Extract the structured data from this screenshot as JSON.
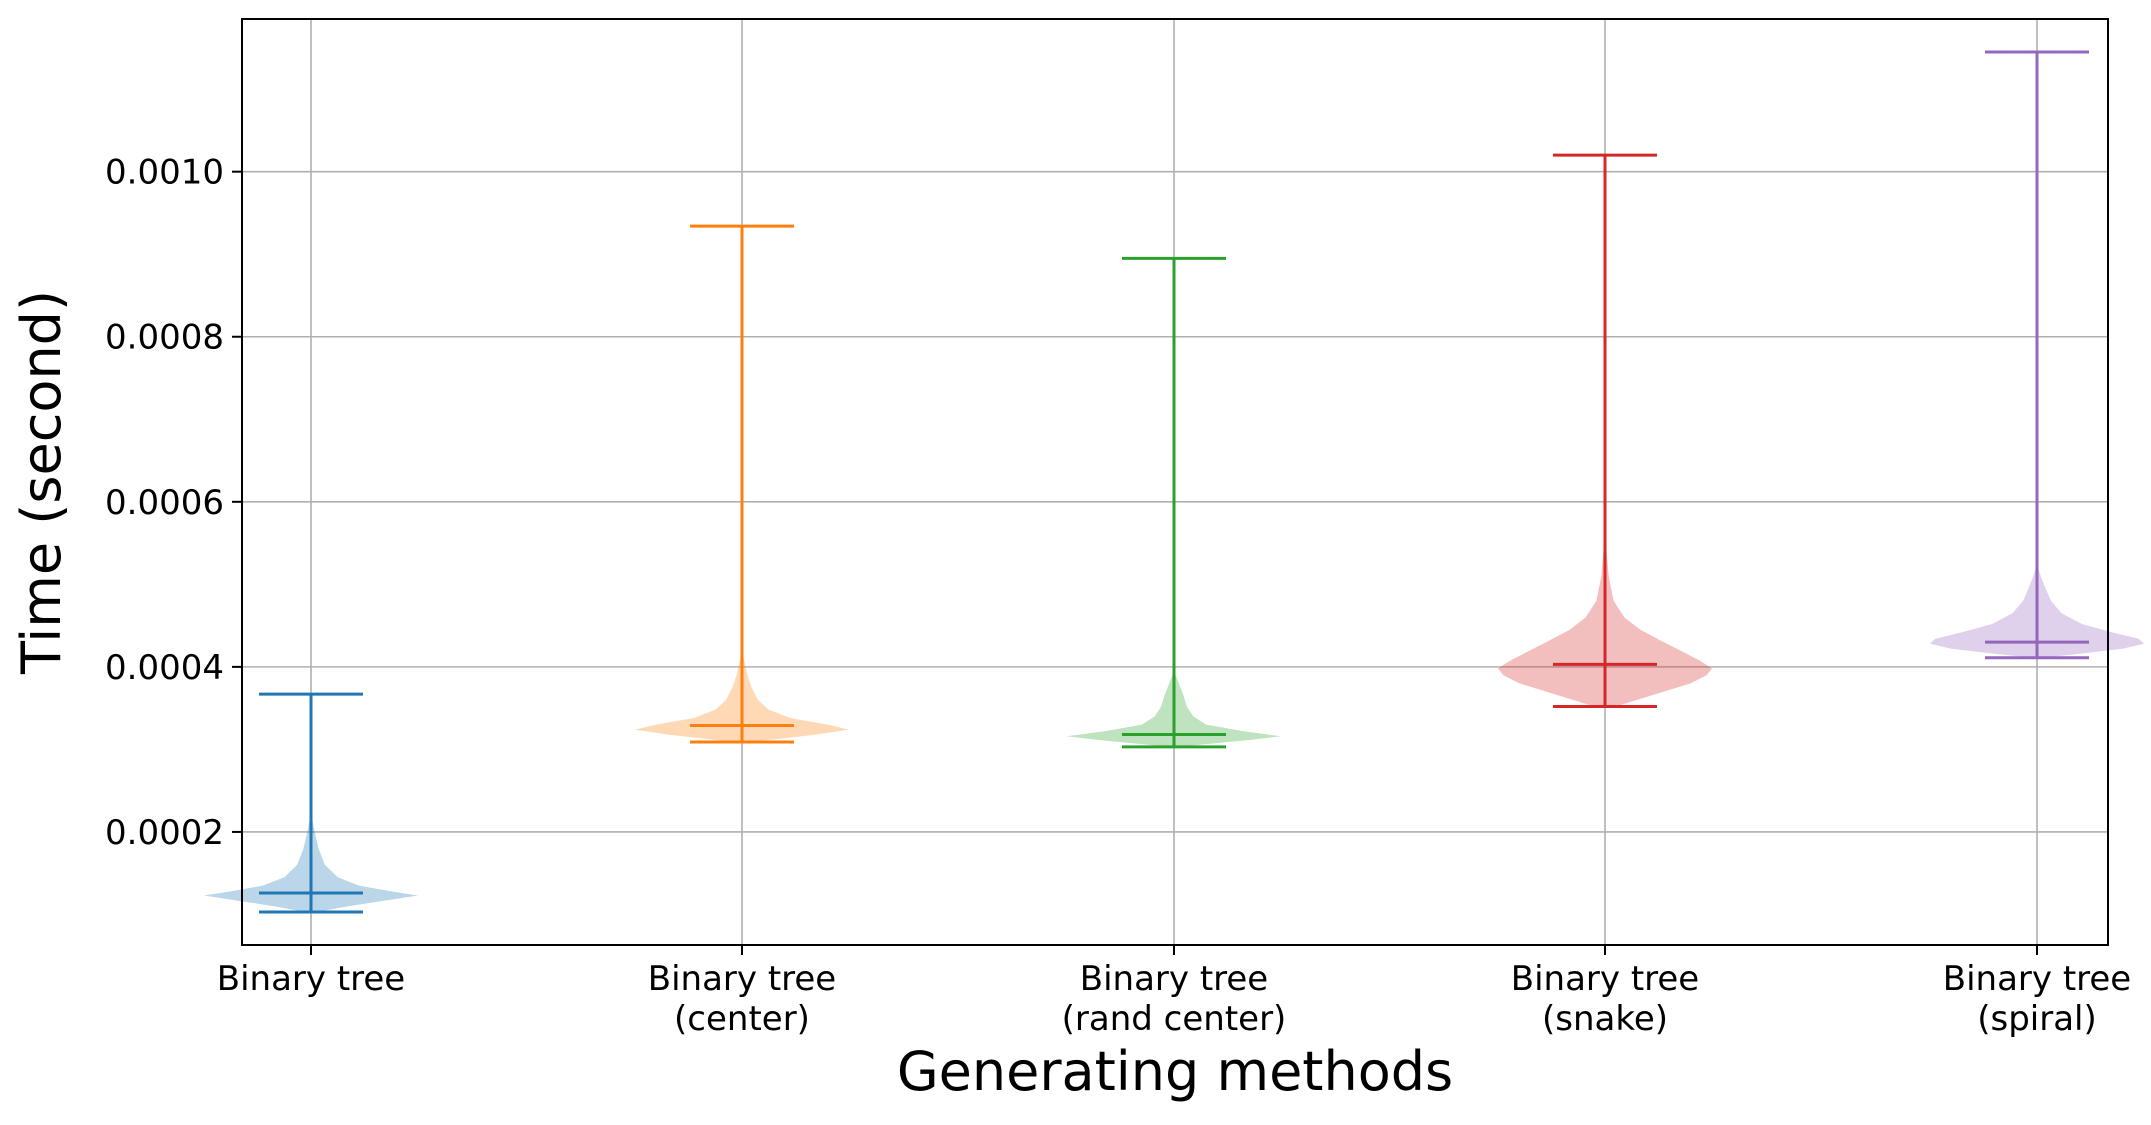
{
  "chart_data": {
    "type": "violin",
    "title": "",
    "xlabel": "Generating methods",
    "ylabel": "Time (second)",
    "ylim": [
      6.3e-05,
      0.001185
    ],
    "yticks": [
      {
        "value": 0.0002,
        "label": "0.0002"
      },
      {
        "value": 0.0004,
        "label": "0.0004"
      },
      {
        "value": 0.0006,
        "label": "0.0006"
      },
      {
        "value": 0.0008,
        "label": "0.0008"
      },
      {
        "value": 0.001,
        "label": "0.0010"
      }
    ],
    "grid": true,
    "categories": [
      [
        "Binary tree"
      ],
      [
        "Binary tree",
        "(center)"
      ],
      [
        "Binary tree",
        "(rand center)"
      ],
      [
        "Binary tree",
        "(snake)"
      ],
      [
        "Binary tree",
        "(spiral)"
      ]
    ],
    "series": [
      {
        "color": "#1f77b4",
        "min": 0.000103,
        "max": 0.000367,
        "median": 0.000126,
        "density": [
          [
            0.000103,
            0.05
          ],
          [
            0.00011,
            0.35
          ],
          [
            0.000118,
            0.75
          ],
          [
            0.000123,
            1.0
          ],
          [
            0.000128,
            0.75
          ],
          [
            0.000135,
            0.45
          ],
          [
            0.000145,
            0.25
          ],
          [
            0.00016,
            0.13
          ],
          [
            0.00018,
            0.07
          ],
          [
            0.0002,
            0.035
          ],
          [
            0.000215,
            0.012
          ],
          [
            0.00023,
            0.0
          ]
        ]
      },
      {
        "color": "#ff7f0e",
        "min": 0.000309,
        "max": 0.000934,
        "median": 0.000329,
        "density": [
          [
            0.000309,
            0.05
          ],
          [
            0.000313,
            0.35
          ],
          [
            0.000318,
            0.7
          ],
          [
            0.000324,
            1.0
          ],
          [
            0.00033,
            0.8
          ],
          [
            0.000338,
            0.45
          ],
          [
            0.000348,
            0.25
          ],
          [
            0.00036,
            0.15
          ],
          [
            0.000375,
            0.09
          ],
          [
            0.00039,
            0.05
          ],
          [
            0.000405,
            0.025
          ],
          [
            0.00042,
            0.0
          ]
        ]
      },
      {
        "color": "#2ca02c",
        "min": 0.000303,
        "max": 0.000895,
        "median": 0.000318,
        "density": [
          [
            0.000303,
            0.05
          ],
          [
            0.000307,
            0.35
          ],
          [
            0.000312,
            0.75
          ],
          [
            0.000316,
            1.0
          ],
          [
            0.000322,
            0.65
          ],
          [
            0.00033,
            0.3
          ],
          [
            0.00034,
            0.18
          ],
          [
            0.000352,
            0.12
          ],
          [
            0.000365,
            0.09
          ],
          [
            0.000375,
            0.06
          ],
          [
            0.000385,
            0.03
          ],
          [
            0.000395,
            0.0
          ]
        ]
      },
      {
        "color": "#d62728",
        "min": 0.000352,
        "max": 0.00102,
        "median": 0.000403,
        "density": [
          [
            0.000352,
            0.1
          ],
          [
            0.00036,
            0.3
          ],
          [
            0.00037,
            0.55
          ],
          [
            0.00038,
            0.8
          ],
          [
            0.00039,
            0.95
          ],
          [
            0.000398,
            1.0
          ],
          [
            0.000408,
            0.88
          ],
          [
            0.00042,
            0.7
          ],
          [
            0.000432,
            0.52
          ],
          [
            0.000445,
            0.33
          ],
          [
            0.00046,
            0.18
          ],
          [
            0.00048,
            0.08
          ],
          [
            0.00051,
            0.035
          ],
          [
            0.00054,
            0.015
          ],
          [
            0.00057,
            0.0
          ]
        ]
      },
      {
        "color": "#9467bd",
        "min": 0.000411,
        "max": 0.001145,
        "median": 0.00043,
        "density": [
          [
            0.000411,
            0.05
          ],
          [
            0.000416,
            0.4
          ],
          [
            0.000422,
            0.8
          ],
          [
            0.000428,
            1.0
          ],
          [
            0.000434,
            0.95
          ],
          [
            0.000442,
            0.7
          ],
          [
            0.000452,
            0.42
          ],
          [
            0.000465,
            0.23
          ],
          [
            0.00048,
            0.13
          ],
          [
            0.000495,
            0.08
          ],
          [
            0.00051,
            0.035
          ],
          [
            0.000525,
            0.0
          ]
        ]
      }
    ]
  }
}
